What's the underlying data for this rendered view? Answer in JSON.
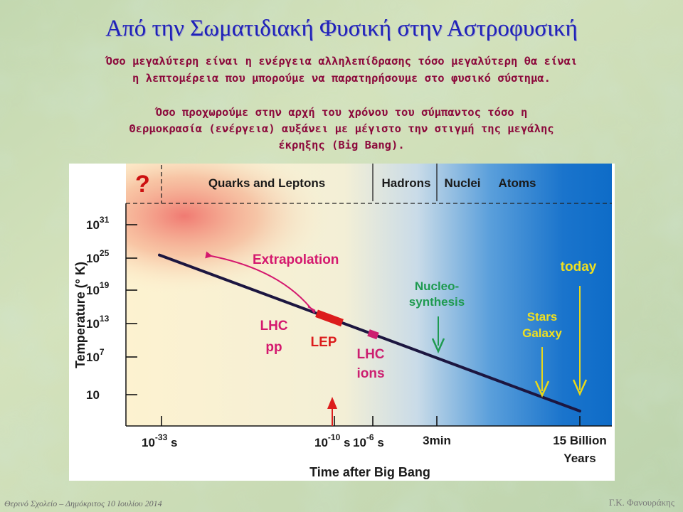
{
  "slide": {
    "title": "Από την Σωματιδιακή Φυσική στην Αστροφυσική",
    "paragraph1_line1": "Όσο μεγαλύτερη είναι η ενέργεια αλληλεπίδρασης τόσο μεγαλύτερη θα είναι",
    "paragraph1_line2": "η λεπτομέρεια που μπορούμε να παρατηρήσουμε στο φυσικό σύστημα.",
    "paragraph2_line1": "Όσο προχωρούμε στην αρχή του χρόνου του σύμπαντος τόσο η",
    "paragraph2_line2": "Θερμοκρασία (ενέργεια) αυξάνει με μέγιστο την στιγμή της μεγάλης",
    "paragraph2_line3": "έκρηξης (Big Bang).",
    "footer_left": "Θερινό Σχολείο – Δημόκριτος 10 Ιουλίου 2014",
    "footer_right": "Γ.Κ. Φανουράκης"
  },
  "chart_data": {
    "type": "line",
    "xlabel": "Time after Big Bang",
    "ylabel": "Temperature (° K)",
    "x_ticks": [
      {
        "base": "10",
        "exp": "-33",
        "unit": "s"
      },
      {
        "base": "10",
        "exp": "-10",
        "unit": "s"
      },
      {
        "base": "10",
        "exp": "-6",
        "unit": "s"
      },
      {
        "base": "3min",
        "exp": "",
        "unit": ""
      },
      {
        "base": "15 Billion",
        "exp": "",
        "unit": "Years"
      }
    ],
    "y_ticks": [
      {
        "base": "10",
        "exp": "31"
      },
      {
        "base": "10",
        "exp": "25"
      },
      {
        "base": "10",
        "exp": "19"
      },
      {
        "base": "10",
        "exp": "13"
      },
      {
        "base": "10",
        "exp": "7"
      },
      {
        "base": "10",
        "exp": ""
      }
    ],
    "eras": [
      "?",
      "Quarks and Leptons",
      "Hadrons",
      "Nuclei",
      "Atoms"
    ],
    "series": [
      {
        "x": [
          "10^-33 s",
          "15 Billion Years"
        ],
        "y_exponent": [
          25.5,
          -1
        ],
        "color": "#1c1640"
      }
    ],
    "annotations": [
      {
        "label": "Extrapolation",
        "color": "#d4186e"
      },
      {
        "label": "LHC pp",
        "lines": [
          "LHC",
          "pp"
        ],
        "color": "#d4186e"
      },
      {
        "label": "LEP",
        "color": "#dc1c1c"
      },
      {
        "label": "LHC ions",
        "lines": [
          "LHC",
          "ions"
        ],
        "color": "#cc1f70"
      },
      {
        "label": "Nucleo-synthesis",
        "lines": [
          "Nucleo-",
          "synthesis"
        ],
        "color": "#1e9a50"
      },
      {
        "label": "Stars Galaxy",
        "lines": [
          "Stars",
          "Galaxy"
        ],
        "color": "#f0e020"
      },
      {
        "label": "today",
        "color": "#f0e020"
      }
    ],
    "colors": {
      "hot": "#f07a72",
      "cold": "#1276cc",
      "line": "#1c1640",
      "lep_segment": "#dc1c1c",
      "lhc_ions_segment": "#cc1f70",
      "extrapolation_arrow": "#d4186e",
      "lhc_arrow": "#dc1c1c",
      "nucleosynthesis_arrow": "#1e9a50",
      "stars_arrow": "#e8d81a",
      "today_arrow": "#e8d81a"
    },
    "legend": "none",
    "grid": false
  }
}
